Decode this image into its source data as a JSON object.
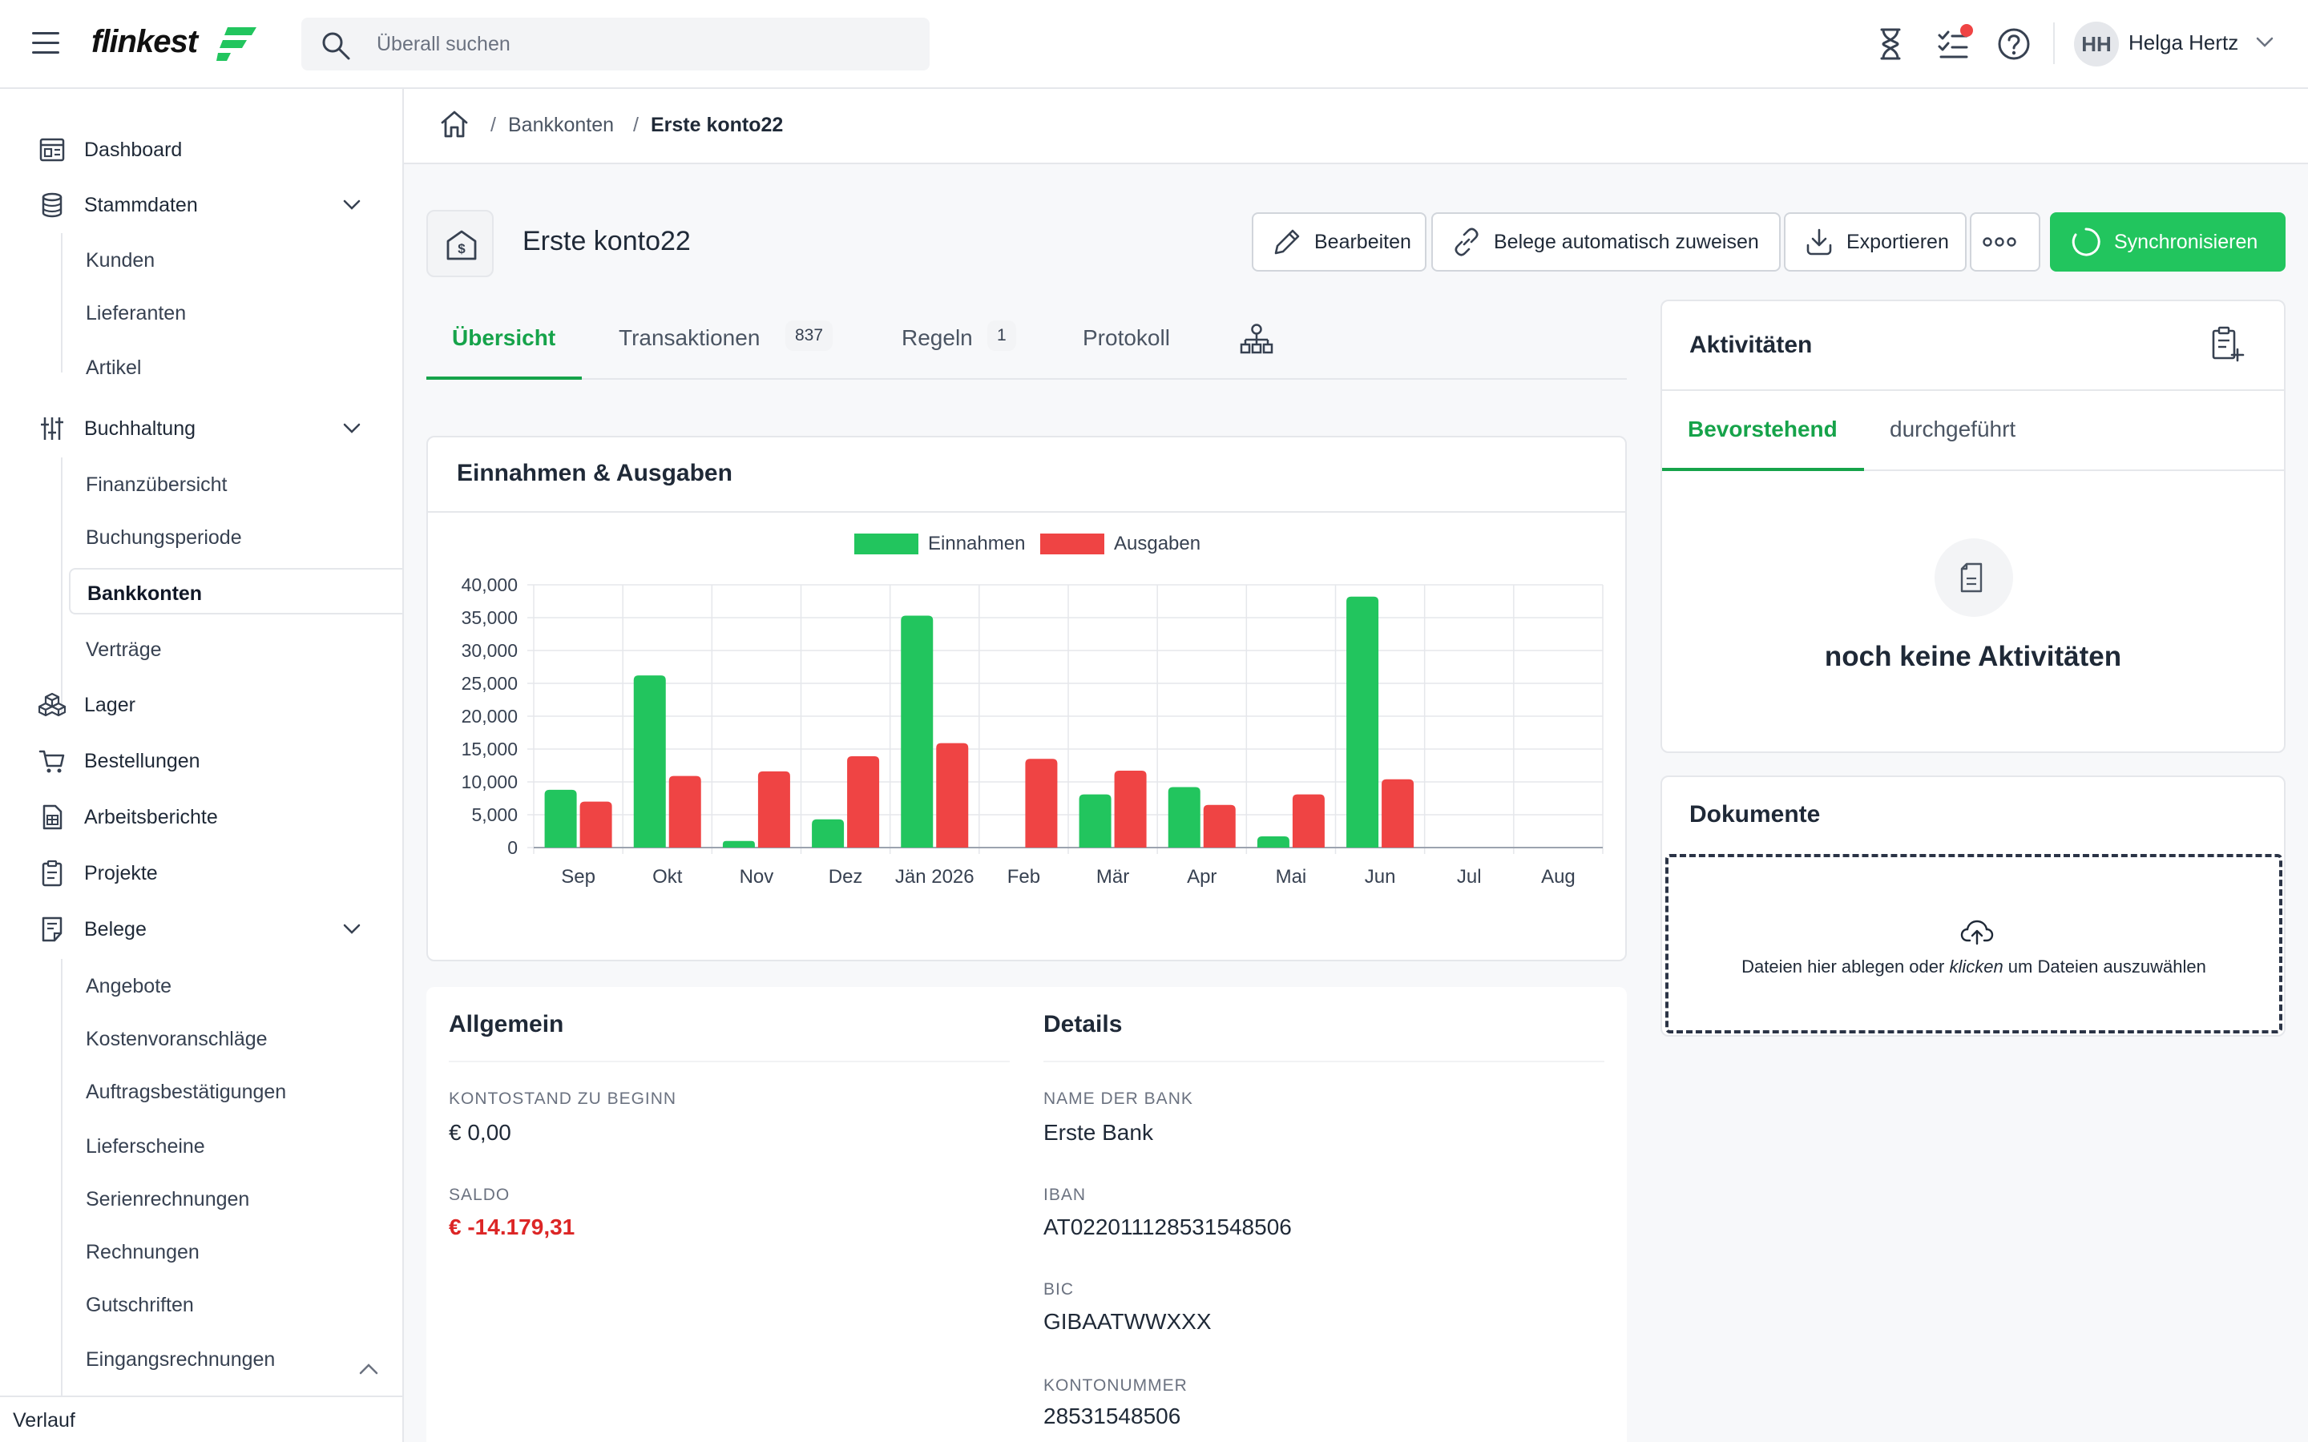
{
  "app": {
    "logo_text": "flinkest",
    "search_placeholder": "Überall suchen",
    "user_initials": "HH",
    "user_name": "Helga Hertz"
  },
  "icons": {
    "menu": "hamburger-icon",
    "search": "search-icon",
    "timer": "hourglass-icon",
    "tasks": "checklist-icon",
    "help": "help-icon",
    "home": "home-icon"
  },
  "colors": {
    "accent": "#22c55e",
    "income": "#22c55e",
    "expense": "#ef4444",
    "negative": "#dc2626"
  },
  "sidebar": {
    "items": [
      {
        "label": "Dashboard",
        "icon": "dashboard-icon"
      },
      {
        "label": "Stammdaten",
        "icon": "database-icon",
        "expanded": true,
        "children": [
          "Kunden",
          "Lieferanten",
          "Artikel"
        ]
      },
      {
        "label": "Buchhaltung",
        "icon": "sliders-icon",
        "expanded": true,
        "children": [
          "Finanzübersicht",
          "Buchungsperiode",
          "Bankkonten",
          "Verträge"
        ]
      },
      {
        "label": "Lager",
        "icon": "boxes-icon"
      },
      {
        "label": "Bestellungen",
        "icon": "cart-icon"
      },
      {
        "label": "Arbeitsberichte",
        "icon": "report-icon"
      },
      {
        "label": "Projekte",
        "icon": "clipboard-icon"
      },
      {
        "label": "Belege",
        "icon": "receipt-icon",
        "expanded": true,
        "children": [
          "Angebote",
          "Kostenvoranschläge",
          "Auftragsbestätigungen",
          "Lieferscheine",
          "Serienrechnungen",
          "Rechnungen",
          "Gutschriften",
          "Eingangsrechnungen"
        ]
      }
    ],
    "active_child": "Bankkonten",
    "footer_label": "Verlauf"
  },
  "breadcrumb": {
    "sep": "/",
    "parent": "Bankkonten",
    "current": "Erste konto22"
  },
  "page": {
    "title": "Erste konto22",
    "actions": {
      "edit": "Bearbeiten",
      "auto_assign": "Belege automatisch zuweisen",
      "export": "Exportieren",
      "sync": "Synchronisieren"
    },
    "tabs": [
      {
        "label": "Übersicht",
        "active": true
      },
      {
        "label": "Transaktionen",
        "badge": "837"
      },
      {
        "label": "Regeln",
        "badge": "1"
      },
      {
        "label": "Protokoll"
      }
    ]
  },
  "chart_card": {
    "title": "Einnahmen & Ausgaben"
  },
  "chart_data": {
    "type": "bar",
    "categories": [
      "Sep",
      "Okt",
      "Nov",
      "Dez",
      "Jän 2026",
      "Feb",
      "Mär",
      "Apr",
      "Mai",
      "Jun",
      "Jul",
      "Aug"
    ],
    "series": [
      {
        "name": "Einnahmen",
        "color": "#22c55e",
        "values": [
          8800,
          26200,
          1000,
          4300,
          35300,
          0,
          8100,
          9200,
          1700,
          38200,
          0,
          0
        ]
      },
      {
        "name": "Ausgaben",
        "color": "#ef4444",
        "values": [
          7000,
          10900,
          11600,
          13900,
          15900,
          13500,
          11700,
          6500,
          8100,
          10400,
          0,
          0
        ]
      }
    ],
    "ylim": [
      0,
      40000
    ],
    "yticks": [
      "0",
      "5,000",
      "10,000",
      "15,000",
      "20,000",
      "25,000",
      "30,000",
      "35,000",
      "40,000"
    ],
    "legend": "top-center",
    "grid": true
  },
  "general": {
    "title": "Allgemein",
    "opening_label": "KONTOSTAND ZU BEGINN",
    "opening_value": "€ 0,00",
    "balance_label": "SALDO",
    "balance_value": "€ -14.179,31"
  },
  "details": {
    "title": "Details",
    "bank_label": "NAME DER BANK",
    "bank_value": "Erste Bank",
    "iban_label": "IBAN",
    "iban_value": "AT022011128531548506",
    "bic_label": "BIC",
    "bic_value": "GIBAATWWXXX",
    "account_label": "KONTONUMMER",
    "account_value": "28531548506"
  },
  "activities": {
    "title": "Aktivitäten",
    "tab_upcoming": "Bevorstehend",
    "tab_done": "durchgeführt",
    "empty_text": "noch keine Aktivitäten"
  },
  "documents": {
    "title": "Dokumente",
    "drop_text_before": "Dateien hier ablegen oder ",
    "drop_text_em": "klicken",
    "drop_text_after": " um Dateien auszuwählen"
  }
}
